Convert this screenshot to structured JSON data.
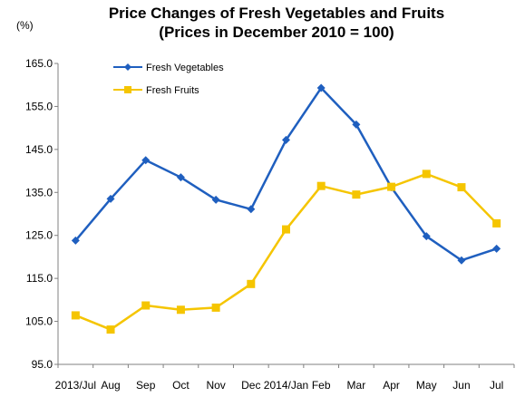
{
  "chart_data": {
    "type": "line",
    "title": "Price Changes of Fresh Vegetables and Fruits",
    "subtitle": "(Prices in December 2010 = 100)",
    "unit_label": "(%)",
    "categories": [
      "2013/Jul",
      "Aug",
      "Sep",
      "Oct",
      "Nov",
      "Dec",
      "2014/Jan",
      "Feb",
      "Mar",
      "Apr",
      "May",
      "Jun",
      "Jul"
    ],
    "ylim": [
      95.0,
      165.0
    ],
    "yticks": [
      "95.0",
      "105.0",
      "115.0",
      "125.0",
      "135.0",
      "145.0",
      "155.0",
      "165.0"
    ],
    "grid": false,
    "legend_position": "top-left",
    "series": [
      {
        "name": "Fresh Vegetables",
        "color": "#1F5FBF",
        "marker": "diamond",
        "values": [
          123.8,
          133.5,
          142.5,
          138.5,
          133.3,
          131.1,
          147.2,
          159.3,
          150.8,
          136.2,
          124.8,
          119.2,
          121.9
        ]
      },
      {
        "name": "Fresh Fruits",
        "color": "#F5C500",
        "marker": "square",
        "values": [
          106.4,
          103.1,
          108.7,
          107.7,
          108.2,
          113.7,
          126.4,
          136.5,
          134.5,
          136.3,
          139.3,
          136.2,
          127.8
        ]
      }
    ]
  }
}
